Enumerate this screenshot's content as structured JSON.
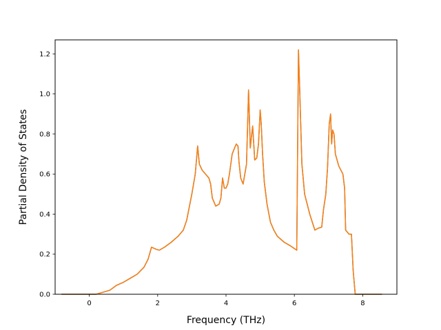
{
  "chart_data": {
    "type": "line",
    "title": "",
    "xlabel": "Frequency (THz)",
    "ylabel": "Partial Density of States",
    "xlim": [
      -1.0,
      9.0
    ],
    "ylim": [
      0.0,
      1.27
    ],
    "xticks": [
      0,
      2,
      4,
      6,
      8
    ],
    "xtick_labels": [
      "0",
      "2",
      "4",
      "6",
      "8"
    ],
    "yticks": [
      0.0,
      0.2,
      0.4,
      0.6,
      0.8,
      1.0,
      1.2
    ],
    "ytick_labels": [
      "0.0",
      "0.2",
      "0.4",
      "0.6",
      "0.8",
      "1.0",
      "1.2"
    ],
    "grid": false,
    "legend": "none",
    "series": [
      {
        "color": "#1f77b4",
        "x": [
          -0.8,
          0.2,
          0.4,
          0.6,
          0.8,
          1.0,
          1.2,
          1.4,
          1.6,
          1.72,
          1.82,
          1.95,
          2.05,
          2.2,
          2.4,
          2.6,
          2.75,
          2.85,
          3.0,
          3.1,
          3.17,
          3.22,
          3.3,
          3.4,
          3.5,
          3.55,
          3.6,
          3.7,
          3.8,
          3.85,
          3.9,
          3.95,
          4.0,
          4.05,
          4.1,
          4.18,
          4.25,
          4.3,
          4.35,
          4.38,
          4.43,
          4.5,
          4.6,
          4.66,
          4.71,
          4.74,
          4.78,
          4.84,
          4.9,
          4.95,
          5.0,
          5.03,
          5.07,
          5.12,
          5.2,
          5.3,
          5.4,
          5.5,
          5.7,
          5.9,
          6.07,
          6.12,
          6.16,
          6.22,
          6.3,
          6.45,
          6.6,
          6.7,
          6.8,
          6.85,
          6.92,
          6.97,
          7.02,
          7.06,
          7.09,
          7.12,
          7.16,
          7.2,
          7.3,
          7.42,
          7.47,
          7.5,
          7.6,
          7.67,
          7.72,
          7.78,
          8.55
        ],
        "values": [
          0.0,
          0.0,
          0.01,
          0.02,
          0.045,
          0.06,
          0.08,
          0.1,
          0.135,
          0.175,
          0.235,
          0.225,
          0.22,
          0.235,
          0.26,
          0.29,
          0.32,
          0.37,
          0.5,
          0.6,
          0.74,
          0.65,
          0.62,
          0.6,
          0.58,
          0.55,
          0.48,
          0.44,
          0.45,
          0.48,
          0.58,
          0.53,
          0.53,
          0.55,
          0.6,
          0.7,
          0.73,
          0.75,
          0.74,
          0.66,
          0.58,
          0.55,
          0.65,
          1.02,
          0.73,
          0.78,
          0.84,
          0.67,
          0.68,
          0.75,
          0.92,
          0.85,
          0.7,
          0.56,
          0.45,
          0.36,
          0.32,
          0.29,
          0.26,
          0.24,
          0.22,
          1.22,
          1.0,
          0.65,
          0.5,
          0.4,
          0.32,
          0.33,
          0.335,
          0.42,
          0.5,
          0.63,
          0.85,
          0.9,
          0.75,
          0.82,
          0.8,
          0.7,
          0.64,
          0.6,
          0.53,
          0.32,
          0.3,
          0.3,
          0.12,
          0.0,
          0.0
        ]
      },
      {
        "color": "#ff7f0e",
        "x": [
          -0.8,
          0.2,
          0.4,
          0.6,
          0.8,
          1.0,
          1.2,
          1.4,
          1.6,
          1.72,
          1.82,
          1.95,
          2.05,
          2.2,
          2.4,
          2.6,
          2.75,
          2.85,
          3.0,
          3.1,
          3.17,
          3.22,
          3.3,
          3.4,
          3.5,
          3.55,
          3.6,
          3.7,
          3.8,
          3.85,
          3.9,
          3.95,
          4.0,
          4.05,
          4.1,
          4.18,
          4.25,
          4.3,
          4.35,
          4.38,
          4.43,
          4.5,
          4.6,
          4.66,
          4.71,
          4.74,
          4.78,
          4.84,
          4.9,
          4.95,
          5.0,
          5.03,
          5.07,
          5.12,
          5.2,
          5.3,
          5.4,
          5.5,
          5.7,
          5.9,
          6.07,
          6.12,
          6.16,
          6.22,
          6.3,
          6.45,
          6.6,
          6.7,
          6.8,
          6.85,
          6.92,
          6.97,
          7.02,
          7.06,
          7.09,
          7.12,
          7.16,
          7.2,
          7.3,
          7.42,
          7.47,
          7.5,
          7.6,
          7.67,
          7.72,
          7.78,
          8.55
        ],
        "values": [
          0.0,
          0.0,
          0.01,
          0.02,
          0.045,
          0.06,
          0.08,
          0.1,
          0.135,
          0.175,
          0.235,
          0.225,
          0.22,
          0.235,
          0.26,
          0.29,
          0.32,
          0.37,
          0.5,
          0.6,
          0.74,
          0.65,
          0.62,
          0.6,
          0.58,
          0.55,
          0.48,
          0.44,
          0.45,
          0.48,
          0.58,
          0.53,
          0.53,
          0.55,
          0.6,
          0.7,
          0.73,
          0.75,
          0.74,
          0.66,
          0.58,
          0.55,
          0.65,
          1.02,
          0.73,
          0.78,
          0.84,
          0.67,
          0.68,
          0.75,
          0.92,
          0.85,
          0.7,
          0.56,
          0.45,
          0.36,
          0.32,
          0.29,
          0.26,
          0.24,
          0.22,
          1.22,
          1.0,
          0.65,
          0.5,
          0.4,
          0.32,
          0.33,
          0.335,
          0.42,
          0.5,
          0.63,
          0.85,
          0.9,
          0.75,
          0.82,
          0.8,
          0.7,
          0.64,
          0.6,
          0.53,
          0.32,
          0.3,
          0.3,
          0.12,
          0.0,
          0.0
        ]
      }
    ]
  }
}
